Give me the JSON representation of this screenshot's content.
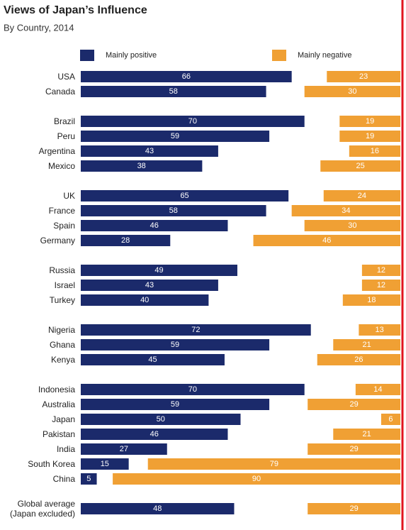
{
  "chart_data": {
    "type": "bar",
    "title": "Views of Japan’s Influence",
    "subtitle": "By Country, 2014",
    "categories": [
      "USA",
      "Canada",
      "Brazil",
      "Peru",
      "Argentina",
      "Mexico",
      "UK",
      "France",
      "Spain",
      "Germany",
      "Russia",
      "Israel",
      "Turkey",
      "Nigeria",
      "Ghana",
      "Kenya",
      "Indonesia",
      "Australia",
      "Japan",
      "Pakistan",
      "India",
      "South Korea",
      "China",
      "Global average (Japan excluded)"
    ],
    "series": [
      {
        "name": "Mainly positive",
        "color": "#1b2a6b",
        "values": [
          66,
          58,
          70,
          59,
          43,
          38,
          65,
          58,
          46,
          28,
          49,
          43,
          40,
          72,
          59,
          45,
          70,
          59,
          50,
          46,
          27,
          15,
          5,
          48
        ]
      },
      {
        "name": "Mainly negative",
        "color": "#f0a034",
        "values": [
          23,
          30,
          19,
          19,
          16,
          25,
          24,
          34,
          30,
          46,
          12,
          12,
          18,
          13,
          21,
          26,
          14,
          29,
          6,
          21,
          29,
          79,
          90,
          29
        ]
      }
    ],
    "xlim": [
      0,
      100
    ]
  }
}
